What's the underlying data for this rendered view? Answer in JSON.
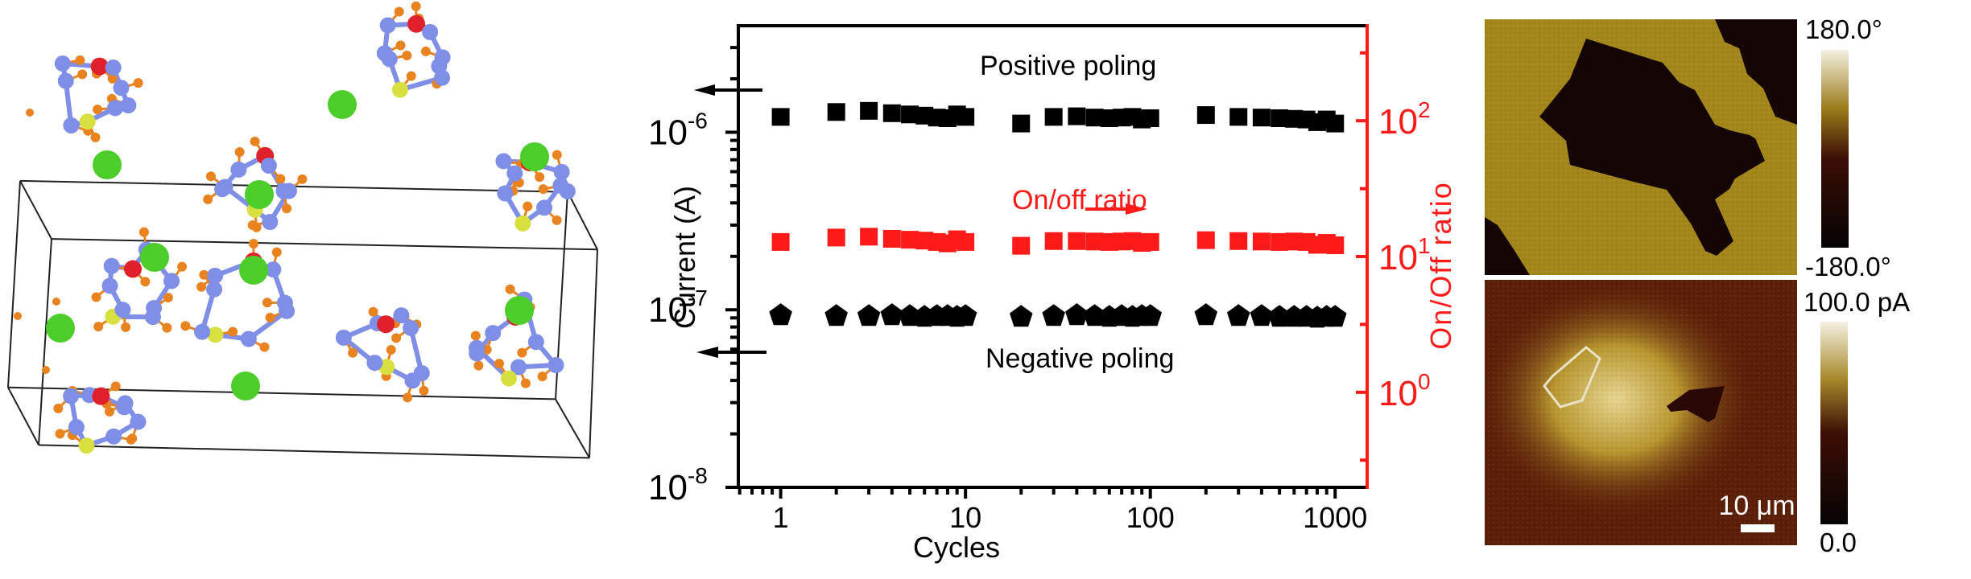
{
  "figure": {
    "structure_panel": {
      "description": "Crystal structure ball-and-stick model with unit cell",
      "atom_colors": {
        "carbon": "#7f8ee6",
        "hydrogen": "#e8831f",
        "oxygen": "#e0202a",
        "sulfur": "#d8e040",
        "chloride": "#4ccd2a",
        "cell_edge": "#222222"
      }
    },
    "afm_panels": {
      "phase": {
        "colorbar_max": "180.0°",
        "colorbar_min": "-180.0°"
      },
      "current": {
        "colorbar_max": "100.0 pA",
        "colorbar_min": "0.0",
        "scalebar_label": "10 μm"
      }
    }
  },
  "chart_data": {
    "type": "scatter",
    "title": "",
    "xlabel": "Cycles",
    "ylabel": "Current (A)",
    "y2label": "On/Off ratio",
    "xscale": "log",
    "yscale": "log",
    "y2scale": "log",
    "xlim": [
      0.59,
      1490
    ],
    "ylim": [
      3.98e-09,
      3.98e-06
    ],
    "y2lim": [
      0.2,
      500
    ],
    "ylim_log10": [
      -8,
      -5.4
    ],
    "y2lim_log10": [
      -0.7,
      2.7
    ],
    "xticks": [
      1,
      10,
      100,
      1000
    ],
    "xtick_labels": [
      "1",
      "10",
      "100",
      "1000"
    ],
    "yticks_log10": [
      -8,
      -7,
      -6
    ],
    "ytick_labels": [
      {
        "base": "10",
        "exp": "-8"
      },
      {
        "base": "10",
        "exp": "-7"
      },
      {
        "base": "10",
        "exp": "-6"
      }
    ],
    "y2ticks_log10": [
      0,
      1,
      2
    ],
    "y2tick_labels": [
      {
        "base": "10",
        "exp": "0"
      },
      {
        "base": "10",
        "exp": "1"
      },
      {
        "base": "10",
        "exp": "2"
      }
    ],
    "grid": false,
    "axis_colors": {
      "left": "#000000",
      "right": "#ff1a1a"
    },
    "x": [
      1,
      2,
      3,
      4,
      5,
      6,
      7,
      8,
      9,
      10,
      20,
      30,
      40,
      50,
      60,
      70,
      80,
      90,
      100,
      200,
      300,
      400,
      500,
      600,
      700,
      800,
      900,
      1000
    ],
    "series": [
      {
        "name": "Positive poling",
        "axis": "left",
        "marker": "square",
        "color": "#000000",
        "values": [
          1.22e-06,
          1.3e-06,
          1.32e-06,
          1.28e-06,
          1.26e-06,
          1.24e-06,
          1.21e-06,
          1.2e-06,
          1.26e-06,
          1.22e-06,
          1.12e-06,
          1.22e-06,
          1.23e-06,
          1.21e-06,
          1.2e-06,
          1.21e-06,
          1.22e-06,
          1.18e-06,
          1.2e-06,
          1.25e-06,
          1.22e-06,
          1.21e-06,
          1.2e-06,
          1.19e-06,
          1.18e-06,
          1.14e-06,
          1.18e-06,
          1.12e-06
        ]
      },
      {
        "name": "On/off ratio",
        "axis": "right",
        "marker": "square",
        "color": "#ff1a1a",
        "values": [
          12.8,
          13.8,
          14.0,
          13.5,
          13.3,
          13.1,
          12.8,
          12.5,
          13.4,
          12.8,
          12.0,
          13.0,
          13.0,
          12.9,
          12.8,
          12.9,
          13.0,
          12.6,
          12.8,
          13.2,
          13.0,
          12.9,
          12.8,
          12.9,
          12.8,
          12.2,
          12.6,
          12.1
        ]
      },
      {
        "name": "Negative poling",
        "axis": "left",
        "marker": "pentagon",
        "color": "#000000",
        "values": [
          9.5e-08,
          9.4e-08,
          9.4e-08,
          9.5e-08,
          9.4e-08,
          9.3e-08,
          9.4e-08,
          9.4e-08,
          9.3e-08,
          9.4e-08,
          9.3e-08,
          9.4e-08,
          9.5e-08,
          9.4e-08,
          9.3e-08,
          9.4e-08,
          9.3e-08,
          9.4e-08,
          9.4e-08,
          9.5e-08,
          9.4e-08,
          9.4e-08,
          9.3e-08,
          9.3e-08,
          9.3e-08,
          9.2e-08,
          9.3e-08,
          9.3e-08
        ]
      }
    ],
    "annotations": [
      {
        "text": "Positive poling",
        "color": "#000000",
        "arrow": "left",
        "arrow_points_to": "left axis"
      },
      {
        "text": "On/off ratio",
        "color": "#ff1a1a",
        "arrow": "right",
        "arrow_points_to": "right axis"
      },
      {
        "text": "Negative poling",
        "color": "#000000",
        "arrow": "left",
        "arrow_points_to": "left axis"
      }
    ]
  }
}
